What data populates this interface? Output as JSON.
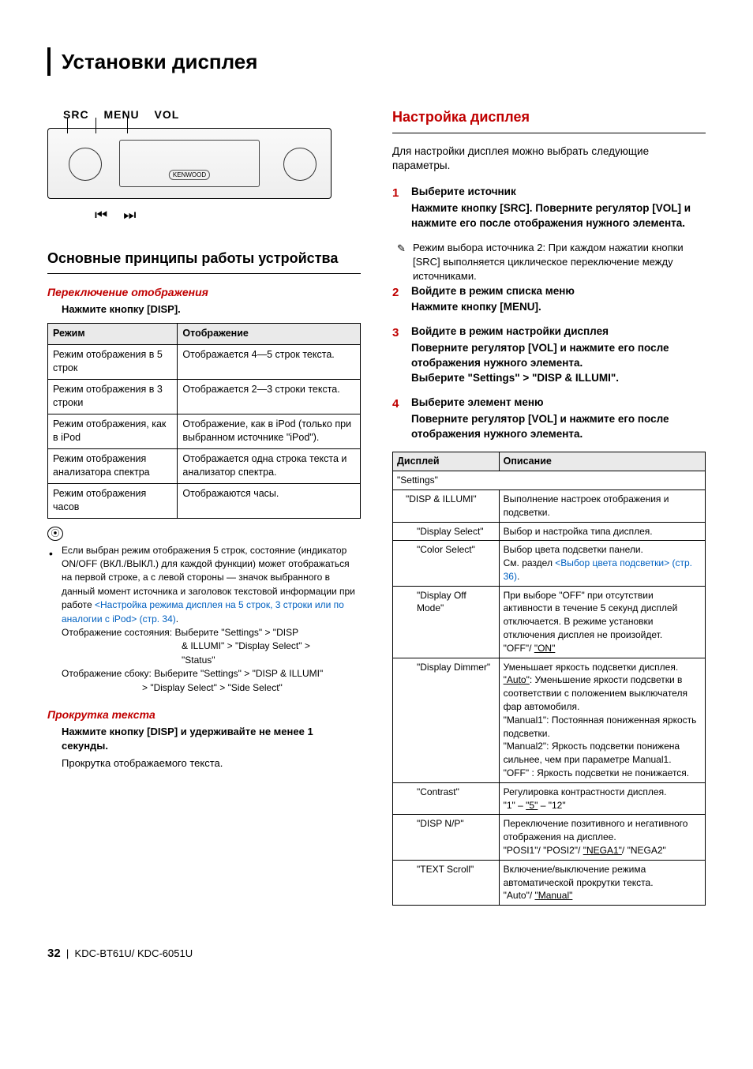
{
  "page_title": "Установки дисплея",
  "control_labels": "SRC   MENU  VOL",
  "kenwood_label": "KENWOOD",
  "skip_prev_icon": "⏮",
  "skip_next_icon": "⏭",
  "left": {
    "h2": "Основные принципы работы устройства",
    "sub1": "Переключение отображения",
    "sub1_bold": "Нажмите кнопку [DISP].",
    "table": {
      "h1": "Режим",
      "h2": "Отображение",
      "rows": [
        [
          "Режим отображения в 5 строк",
          "Отображается 4—5 строк текста."
        ],
        [
          "Режим отображения в 3 строки",
          "Отображается 2—3 строки текста."
        ],
        [
          "Режим отображения, как в iPod",
          "Отображение, как в iPod (только при выбранном источнике \"iPod\")."
        ],
        [
          "Режим отображения анализатора спектра",
          "Отображается одна строка текста и анализатор спектра."
        ],
        [
          "Режим отображения часов",
          "Отображаются часы."
        ]
      ]
    },
    "note_icon": "⦿",
    "note_text_start": "Если выбран режим отображения 5 строк, состояние (индикатор ON/OFF (ВКЛ./ВЫКЛ.) для каждой функции) может отображаться на первой строке, а с левой стороны — значок выбранного в данный момент источника и заголовок текстовой информации при работе ",
    "note_link": "<Настройка режима дисплея на 5 строк, 3 строки или по аналогии с iPod> (стр. 34)",
    "note_period": ".",
    "note_line_status_l": "Отображение состояния: Выберите \"Settings\" > \"DISP",
    "note_line_status_indent1": "& ILLUMI\" > \"Display Select\" >",
    "note_line_status_indent2": "\"Status\"",
    "note_line_side_l": "Отображение сбоку: Выберите \"Settings\" > \"DISP & ILLUMI\"",
    "note_line_side_indent": "> \"Display Select\" > \"Side Select\"",
    "scroll_title": "Прокрутка текста",
    "scroll_bold": "Нажмите кнопку [DISP] и удерживайте не менее 1 секунды.",
    "scroll_text": "Прокрутка отображаемого текста."
  },
  "right": {
    "h2": "Настройка дисплея",
    "intro": "Для настройки дисплея можно выбрать следующие параметры.",
    "steps": [
      {
        "num": "1",
        "title": "Выберите источник",
        "bold": "Нажмите кнопку [SRC]. Поверните регулятор [VOL] и нажмите его после отображения нужного элемента.",
        "subnote": "Режим выбора источника 2: При каждом нажатии кнопки [SRC] выполняется циклическое переключение между источниками."
      },
      {
        "num": "2",
        "title": "Войдите в режим списка меню",
        "bold": "Нажмите кнопку [MENU]."
      },
      {
        "num": "3",
        "title": "Войдите в режим настройки дисплея",
        "bold": "Поверните регулятор [VOL] и нажмите его после отображения нужного элемента.\nВыберите \"Settings\" > \"DISP & ILLUMI\"."
      },
      {
        "num": "4",
        "title": "Выберите элемент меню",
        "bold": "Поверните регулятор [VOL] и нажмите его после отображения нужного элемента."
      }
    ],
    "table": {
      "h1": "Дисплей",
      "h2": "Описание",
      "rows": [
        {
          "lvl": 0,
          "label": "\"Settings\"",
          "desc": ""
        },
        {
          "lvl": 1,
          "label": "\"DISP & ILLUMI\"",
          "desc": "Выполнение настроек отображения и подсветки."
        },
        {
          "lvl": 2,
          "label": "\"Display Select\"",
          "desc": "Выбор и настройка типа дисплея."
        },
        {
          "lvl": 2,
          "label": "\"Color Select\"",
          "desc_html": "Выбор цвета подсветки панели.<br>См. раздел <span class=\"link-blue\">&lt;Выбор цвета подсветки&gt; (стр. 36)</span>."
        },
        {
          "lvl": 2,
          "label": "\"Display Off Mode\"",
          "desc_html": "При выборе \"OFF\" при отсутствии активности в течение 5 секунд дисплей отключается. В режиме установки отключения дисплея не произойдет.<br>\"OFF\"/ <span class=\"u\">\"ON\"</span>"
        },
        {
          "lvl": 2,
          "label": "\"Display Dimmer\"",
          "desc_html": "Уменьшает яркость подсветки дисплея.<br><span class=\"u\">\"Auto\"</span>: Уменьшение яркости подсветки в соответствии с положением выключателя фар автомобиля.<br>\"Manual1\": Постоянная пониженная яркость подсветки.<br>\"Manual2\": Яркость подсветки понижена сильнее, чем при параметре Manual1.<br>\"OFF\" : Яркость подсветки не понижается."
        },
        {
          "lvl": 2,
          "label": "\"Contrast\"",
          "desc_html": "Регулировка контрастности дисплея.<br>\"1\" – <span class=\"u\">\"5\"</span> – \"12\""
        },
        {
          "lvl": 2,
          "label": "\"DISP N/P\"",
          "desc_html": "Переключение позитивного и негативного отображения на дисплее.<br>\"POSI1\"/ \"POSI2\"/ <span class=\"u\">\"NEGA1\"</span>/ \"NEGA2\""
        },
        {
          "lvl": 2,
          "label": "\"TEXT Scroll\"",
          "desc_html": "Включение/выключение режима автоматической прокрутки текста.<br>\"Auto\"/ <span class=\"u\">\"Manual\"</span>"
        }
      ]
    }
  },
  "footer": {
    "page_num": "32",
    "sep": "|",
    "models": "KDC-BT61U/ KDC-6051U"
  },
  "colors": {
    "accent_red": "#c00000",
    "link_blue": "#0060c0",
    "header_bg": "#eaeaea",
    "border": "#000000",
    "background": "#ffffff"
  }
}
